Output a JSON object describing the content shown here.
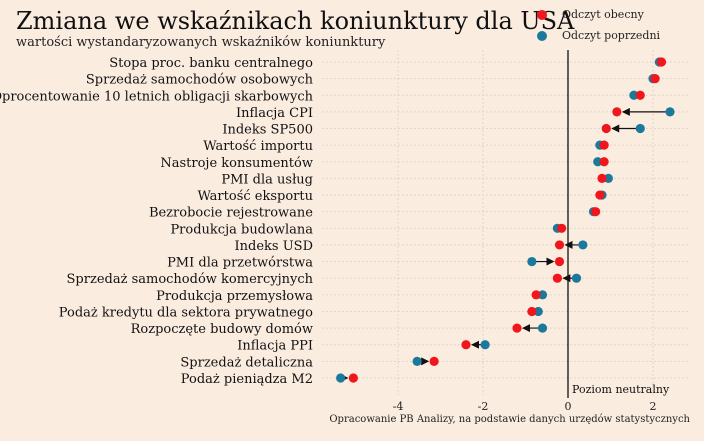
{
  "title": "Zmiana we wskaźnikach koniunktury dla USA",
  "subtitle": "wartości wystandaryzowanych wskaźników koniunktury",
  "legend": {
    "current_label": "Odczyt obecny",
    "previous_label": "Odczyt poprzedni"
  },
  "colors": {
    "current": "#f0161c",
    "previous": "#1b7a9c",
    "background": "#fbece0"
  },
  "annotation": "Poziom neutralny",
  "source": "Opracowanie PB Analizy, na podstawie danych urzędów statystycznych",
  "chart_data": {
    "type": "dumbbell",
    "title": "Zmiana we wskaźnikach koniunktury dla USA",
    "subtitle": "wartości wystandaryzowanych wskaźników koniunktury",
    "xlim": [
      -5.6,
      3.0
    ],
    "x_ticks": [
      -4,
      -2,
      0,
      2
    ],
    "grid": true,
    "legend_position": "top-right",
    "series": [
      {
        "name": "Odczyt obecny",
        "key": "current"
      },
      {
        "name": "Odczyt poprzedni",
        "key": "previous"
      }
    ],
    "categories": [
      {
        "label": "Stopa proc. banku centralnego",
        "current": 2.2,
        "previous": 2.15
      },
      {
        "label": "Sprzedaż samochodów osobowych",
        "current": 2.05,
        "previous": 2.0
      },
      {
        "label": "Oprocentowanie 10 letnich obligacji skarbowych",
        "current": 1.7,
        "previous": 1.55
      },
      {
        "label": "Inflacja CPI",
        "current": 1.15,
        "previous": 2.4
      },
      {
        "label": "Indeks SP500",
        "current": 0.9,
        "previous": 1.7
      },
      {
        "label": "Wartość importu",
        "current": 0.85,
        "previous": 0.75
      },
      {
        "label": "Nastroje konsumentów",
        "current": 0.85,
        "previous": 0.7
      },
      {
        "label": "PMI dla usług",
        "current": 0.8,
        "previous": 0.95
      },
      {
        "label": "Wartość eksportu",
        "current": 0.75,
        "previous": 0.8
      },
      {
        "label": "Bezrobocie rejestrowane",
        "current": 0.65,
        "previous": 0.6
      },
      {
        "label": "Produkcja budowlana",
        "current": -0.15,
        "previous": -0.25
      },
      {
        "label": "Indeks USD",
        "current": -0.2,
        "previous": 0.35
      },
      {
        "label": "PMI dla przetwórstwa",
        "current": -0.2,
        "previous": -0.85
      },
      {
        "label": "Sprzedaż samochodów komercyjnych",
        "current": -0.25,
        "previous": 0.2
      },
      {
        "label": "Produkcja przemysłowa",
        "current": -0.75,
        "previous": -0.6
      },
      {
        "label": "Podaż kredytu dla sektora prywatnego",
        "current": -0.85,
        "previous": -0.7
      },
      {
        "label": "Rozpoczęte budowy domów",
        "current": -1.2,
        "previous": -0.6
      },
      {
        "label": "Inflacja PPI",
        "current": -2.4,
        "previous": -1.95
      },
      {
        "label": "Sprzedaż detaliczna",
        "current": -3.15,
        "previous": -3.55
      },
      {
        "label": "Podaż pieniądza M2",
        "current": -5.05,
        "previous": -5.35
      }
    ]
  }
}
